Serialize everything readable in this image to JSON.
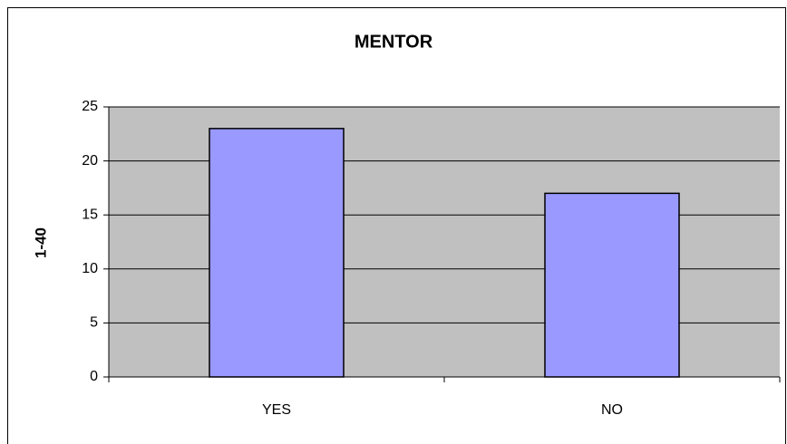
{
  "chart_data": {
    "type": "bar",
    "title": "MENTOR",
    "y_label": "1-40",
    "categories": [
      "YES",
      "NO"
    ],
    "values": [
      23,
      17
    ],
    "color": "#9999ff",
    "ylim": [
      0,
      25
    ],
    "yticks": [
      0,
      5,
      10,
      15,
      20,
      25
    ],
    "grid": true
  }
}
